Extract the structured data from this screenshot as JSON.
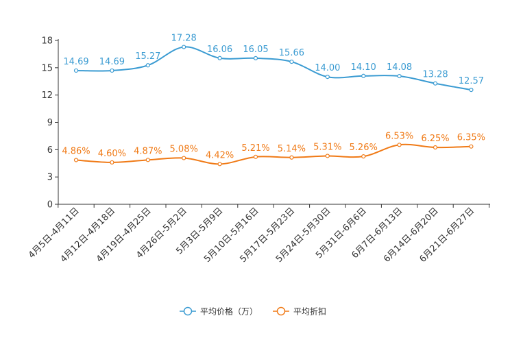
{
  "chart_data": {
    "type": "line",
    "title": "",
    "xlabel": "",
    "ylabel": "",
    "ylim": [
      0,
      18
    ],
    "yticks": [
      "0",
      "3",
      "6",
      "9",
      "12",
      "15",
      "18"
    ],
    "categories": [
      "4月5日-4月11日",
      "4月12日-4月18日",
      "4月19日-4月25日",
      "4月26日-5月2日",
      "5月3日-5月9日",
      "5月10日-5月16日",
      "5月17日-5月23日",
      "5月24日-5月30日",
      "5月31日-6月6日",
      "6月7日-6月13日",
      "6月14日-6月20日",
      "6月21日-6月27日"
    ],
    "series": [
      {
        "name": "平均价格（万）",
        "color": "#3a9bd2",
        "values": [
          14.69,
          14.69,
          15.27,
          17.28,
          16.06,
          16.05,
          15.66,
          14.0,
          14.1,
          14.08,
          13.28,
          12.57
        ],
        "labels": [
          "14.69",
          "14.69",
          "15.27",
          "17.28",
          "16.06",
          "16.05",
          "15.66",
          "14.00",
          "14.10",
          "14.08",
          "13.28",
          "12.57"
        ]
      },
      {
        "name": "平均折扣",
        "color": "#f07a16",
        "values": [
          4.86,
          4.6,
          4.87,
          5.08,
          4.42,
          5.21,
          5.14,
          5.31,
          5.26,
          6.53,
          6.25,
          6.35
        ],
        "labels": [
          "4.86%",
          "4.60%",
          "4.87%",
          "5.08%",
          "4.42%",
          "5.21%",
          "5.14%",
          "5.31%",
          "5.26%",
          "6.53%",
          "6.25%",
          "6.35%"
        ]
      }
    ],
    "legend_position": "bottom-center",
    "grid": false
  }
}
